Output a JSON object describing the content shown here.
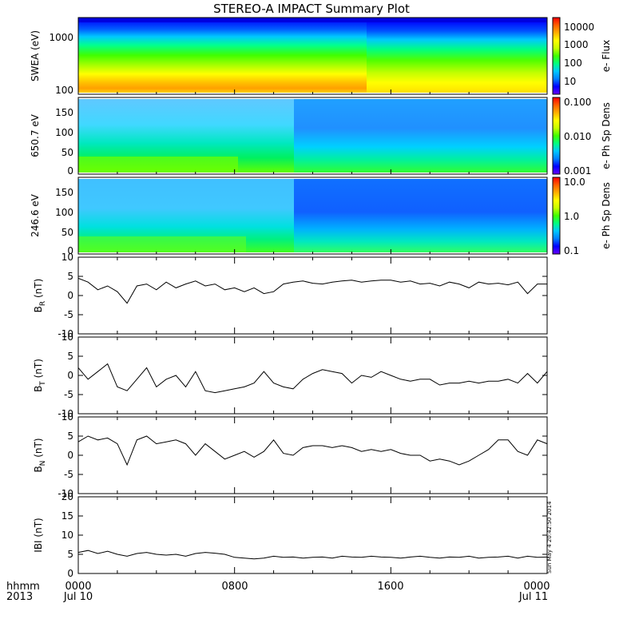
{
  "title": "STEREO-A IMPACT Summary Plot",
  "footer": {
    "hhmm_label": "hhmm",
    "year_label": "2013",
    "x_ticks": [
      "0000",
      "0800",
      "1600",
      "0000"
    ],
    "x_dates": [
      "Jul 10",
      "",
      "",
      "Jul 11"
    ],
    "stamp": "Sun May  4 20:42:50 2014"
  },
  "colors": {
    "line": "#000000",
    "colormap": [
      "#6a00ff",
      "#0000ff",
      "#0080ff",
      "#00c8ff",
      "#00ff80",
      "#40ff00",
      "#c8ff00",
      "#ffff00",
      "#ffb000",
      "#ff6000",
      "#ff0000"
    ]
  },
  "chart_data": [
    {
      "type": "heatmap",
      "ylabel": "SWEA (eV)",
      "y_ticks": [
        "1000",
        "100"
      ],
      "y_scale": "log",
      "ylim": [
        90,
        2000
      ],
      "colorbar_label": "e- Flux",
      "colorbar_ticks": [
        "10000",
        "1000",
        "100",
        "10"
      ],
      "colorbar_scale": "log",
      "description_values": {
        "high_energy_flux": 30,
        "low_energy_flux": 30000
      }
    },
    {
      "type": "heatmap",
      "ylabel": "650.7 eV",
      "y_ticks": [
        "150",
        "100",
        "50",
        "0"
      ],
      "ylim": [
        0,
        180
      ],
      "colorbar_label": "e- Ph Sp Dens",
      "colorbar_ticks": [
        "0.100",
        "0.010",
        "0.001"
      ],
      "colorbar_scale": "log"
    },
    {
      "type": "heatmap",
      "ylabel": "246.6 eV",
      "y_ticks": [
        "150",
        "100",
        "50",
        "0"
      ],
      "ylim": [
        0,
        180
      ],
      "colorbar_label": "e- Ph Sp Dens",
      "colorbar_ticks": [
        "10.0",
        "1.0",
        "0.1"
      ],
      "colorbar_scale": "log"
    },
    {
      "type": "line",
      "ylabel_main": "B",
      "ylabel_sub": "R",
      "ylabel_unit": " (nT)",
      "y_ticks": [
        "10",
        "5",
        "0",
        "-5",
        "-10"
      ],
      "ylim": [
        -10,
        10
      ],
      "x_hours": [
        0,
        0.5,
        1,
        1.5,
        2,
        2.5,
        3,
        3.5,
        4,
        4.5,
        5,
        5.5,
        6,
        6.5,
        7,
        7.5,
        8,
        8.5,
        9,
        9.5,
        10,
        10.5,
        11,
        11.5,
        12,
        12.5,
        13,
        13.5,
        14,
        14.5,
        15,
        15.5,
        16,
        16.5,
        17,
        17.5,
        18,
        18.5,
        19,
        19.5,
        20,
        20.5,
        21,
        21.5,
        22,
        22.5,
        23,
        23.5,
        24
      ],
      "y": [
        4.5,
        3.5,
        1.5,
        2.5,
        1.0,
        -2.0,
        2.5,
        3.0,
        1.5,
        3.5,
        2.0,
        3.0,
        3.8,
        2.5,
        3.0,
        1.5,
        2.0,
        1.0,
        2.0,
        0.5,
        1.0,
        3.0,
        3.5,
        3.8,
        3.2,
        3.0,
        3.5,
        3.8,
        4.0,
        3.5,
        3.8,
        4.0,
        4.0,
        3.5,
        3.8,
        3.0,
        3.2,
        2.5,
        3.5,
        3.0,
        2.0,
        3.5,
        3.0,
        3.2,
        2.8,
        3.5,
        0.5,
        3.0,
        3.0
      ]
    },
    {
      "type": "line",
      "ylabel_main": "B",
      "ylabel_sub": "T",
      "ylabel_unit": " (nT)",
      "y_ticks": [
        "10",
        "5",
        "0",
        "-5",
        "-10"
      ],
      "ylim": [
        -10,
        10
      ],
      "x_hours": [
        0,
        0.5,
        1,
        1.5,
        2,
        2.5,
        3,
        3.5,
        4,
        4.5,
        5,
        5.5,
        6,
        6.5,
        7,
        7.5,
        8,
        8.5,
        9,
        9.5,
        10,
        10.5,
        11,
        11.5,
        12,
        12.5,
        13,
        13.5,
        14,
        14.5,
        15,
        15.5,
        16,
        16.5,
        17,
        17.5,
        18,
        18.5,
        19,
        19.5,
        20,
        20.5,
        21,
        21.5,
        22,
        22.5,
        23,
        23.5,
        24
      ],
      "y": [
        2.0,
        -1.0,
        1.0,
        3.0,
        -3.0,
        -4.0,
        -1.0,
        2.0,
        -3.0,
        -1.0,
        0.0,
        -3.0,
        1.0,
        -4.0,
        -4.5,
        -4.0,
        -3.5,
        -3.0,
        -2.0,
        1.0,
        -2.0,
        -3.0,
        -3.5,
        -1.0,
        0.5,
        1.5,
        1.0,
        0.5,
        -2.0,
        0.0,
        -0.5,
        1.0,
        0.0,
        -1.0,
        -1.5,
        -1.0,
        -1.0,
        -2.5,
        -2.0,
        -2.0,
        -1.5,
        -2.0,
        -1.5,
        -1.5,
        -1.0,
        -2.0,
        0.5,
        -2.0,
        1.0
      ]
    },
    {
      "type": "line",
      "ylabel_main": "B",
      "ylabel_sub": "N",
      "ylabel_unit": " (nT)",
      "y_ticks": [
        "10",
        "5",
        "0",
        "-5",
        "-10"
      ],
      "ylim": [
        -10,
        10
      ],
      "x_hours": [
        0,
        0.5,
        1,
        1.5,
        2,
        2.5,
        3,
        3.5,
        4,
        4.5,
        5,
        5.5,
        6,
        6.5,
        7,
        7.5,
        8,
        8.5,
        9,
        9.5,
        10,
        10.5,
        11,
        11.5,
        12,
        12.5,
        13,
        13.5,
        14,
        14.5,
        15,
        15.5,
        16,
        16.5,
        17,
        17.5,
        18,
        18.5,
        19,
        19.5,
        20,
        20.5,
        21,
        21.5,
        22,
        22.5,
        23,
        23.5,
        24
      ],
      "y": [
        3.5,
        5.0,
        4.0,
        4.5,
        3.0,
        -2.5,
        4.0,
        5.0,
        3.0,
        3.5,
        4.0,
        3.0,
        0.0,
        3.0,
        1.0,
        -1.0,
        0.0,
        1.0,
        -0.5,
        1.0,
        4.0,
        0.5,
        0.0,
        2.0,
        2.5,
        2.5,
        2.0,
        2.5,
        2.0,
        1.0,
        1.5,
        1.0,
        1.5,
        0.5,
        0.0,
        0.0,
        -1.5,
        -1.0,
        -1.5,
        -2.5,
        -1.5,
        0.0,
        1.5,
        4.0,
        4.0,
        1.0,
        0.0,
        4.0,
        3.0
      ]
    },
    {
      "type": "line",
      "ylabel_main": "IBI",
      "ylabel_sub": "",
      "ylabel_unit": " (nT)",
      "y_ticks": [
        "20",
        "15",
        "10",
        "5",
        "0"
      ],
      "ylim": [
        0,
        20
      ],
      "x_hours": [
        0,
        0.5,
        1,
        1.5,
        2,
        2.5,
        3,
        3.5,
        4,
        4.5,
        5,
        5.5,
        6,
        6.5,
        7,
        7.5,
        8,
        8.5,
        9,
        9.5,
        10,
        10.5,
        11,
        11.5,
        12,
        12.5,
        13,
        13.5,
        14,
        14.5,
        15,
        15.5,
        16,
        16.5,
        17,
        17.5,
        18,
        18.5,
        19,
        19.5,
        20,
        20.5,
        21,
        21.5,
        22,
        22.5,
        23,
        23.5,
        24
      ],
      "y": [
        5.5,
        6.0,
        5.2,
        5.8,
        5.0,
        4.5,
        5.2,
        5.5,
        5.0,
        4.8,
        5.0,
        4.5,
        5.2,
        5.5,
        5.3,
        5.0,
        4.2,
        4.0,
        3.8,
        4.0,
        4.5,
        4.2,
        4.3,
        4.0,
        4.2,
        4.3,
        4.0,
        4.5,
        4.3,
        4.2,
        4.5,
        4.3,
        4.2,
        4.0,
        4.3,
        4.5,
        4.2,
        4.0,
        4.3,
        4.2,
        4.5,
        4.0,
        4.2,
        4.3,
        4.5,
        4.0,
        4.5,
        4.2,
        4.3
      ]
    }
  ]
}
